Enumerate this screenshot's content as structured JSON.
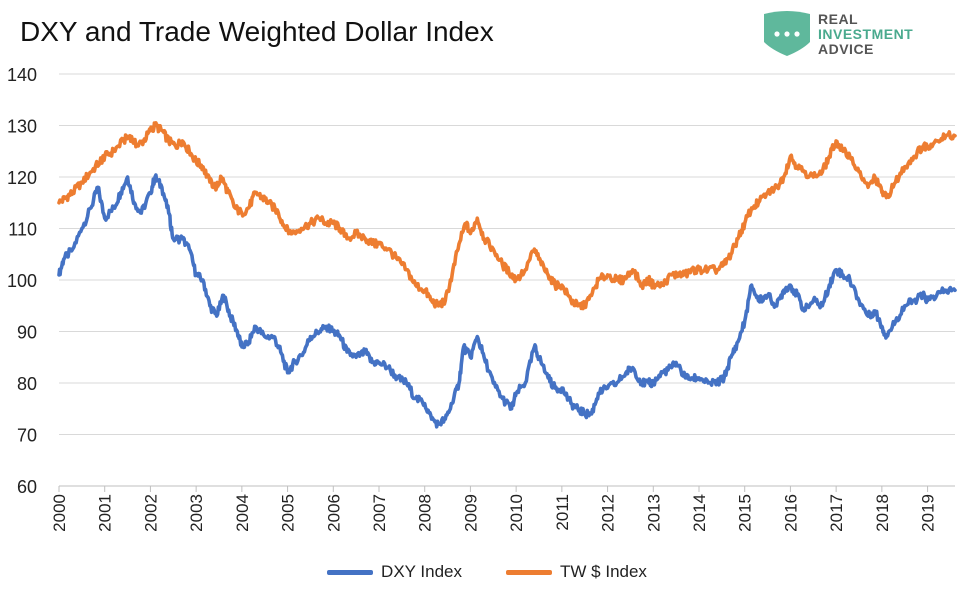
{
  "title": "DXY and Trade Weighted Dollar Index",
  "logo": {
    "lines": [
      "REAL",
      "INVESTMENT",
      "ADVICE"
    ],
    "colors": [
      "#555555",
      "#4aaa8e",
      "#555555"
    ],
    "icon": "chat-bubble-icon",
    "icon_color": "#5fb89c"
  },
  "chart_data": {
    "type": "line",
    "title": "DXY and Trade Weighted Dollar Index",
    "xlabel": "",
    "ylabel": "",
    "xlim": [
      2000,
      2019.6
    ],
    "ylim": [
      60,
      140
    ],
    "yticks": [
      60,
      70,
      80,
      90,
      100,
      110,
      120,
      130,
      140
    ],
    "xticks": [
      "2000",
      "2001",
      "2002",
      "2003",
      "2004",
      "2005",
      "2006",
      "2007",
      "2008",
      "2009",
      "2010",
      "2011",
      "2012",
      "2013",
      "2014",
      "2015",
      "2016",
      "2017",
      "2018",
      "2019"
    ],
    "grid": "horizontal",
    "legend_position": "bottom",
    "series": [
      {
        "name": "DXY Index",
        "color": "#4472c4",
        "points": [
          [
            2000.0,
            101
          ],
          [
            2000.1,
            104
          ],
          [
            2000.3,
            106
          ],
          [
            2000.5,
            110
          ],
          [
            2000.7,
            114
          ],
          [
            2000.85,
            118
          ],
          [
            2001.0,
            112
          ],
          [
            2001.2,
            114
          ],
          [
            2001.35,
            117
          ],
          [
            2001.5,
            120
          ],
          [
            2001.65,
            115
          ],
          [
            2001.8,
            113
          ],
          [
            2002.0,
            117
          ],
          [
            2002.1,
            120
          ],
          [
            2002.25,
            118
          ],
          [
            2002.4,
            113
          ],
          [
            2002.5,
            108
          ],
          [
            2002.7,
            108
          ],
          [
            2002.85,
            106
          ],
          [
            2003.0,
            101
          ],
          [
            2003.15,
            100
          ],
          [
            2003.3,
            95
          ],
          [
            2003.45,
            93
          ],
          [
            2003.6,
            97
          ],
          [
            2003.75,
            93
          ],
          [
            2003.9,
            90
          ],
          [
            2004.0,
            87
          ],
          [
            2004.15,
            88
          ],
          [
            2004.3,
            91
          ],
          [
            2004.5,
            89
          ],
          [
            2004.7,
            89
          ],
          [
            2004.85,
            86
          ],
          [
            2005.0,
            82
          ],
          [
            2005.15,
            84
          ],
          [
            2005.35,
            86
          ],
          [
            2005.5,
            89
          ],
          [
            2005.7,
            90
          ],
          [
            2005.85,
            91
          ],
          [
            2006.0,
            90
          ],
          [
            2006.15,
            89
          ],
          [
            2006.3,
            86
          ],
          [
            2006.5,
            85
          ],
          [
            2006.7,
            86
          ],
          [
            2006.85,
            84
          ],
          [
            2007.0,
            84
          ],
          [
            2007.2,
            83
          ],
          [
            2007.4,
            81
          ],
          [
            2007.6,
            80
          ],
          [
            2007.8,
            77
          ],
          [
            2008.0,
            76
          ],
          [
            2008.15,
            73
          ],
          [
            2008.3,
            72
          ],
          [
            2008.45,
            73
          ],
          [
            2008.6,
            76
          ],
          [
            2008.75,
            80
          ],
          [
            2008.85,
            87
          ],
          [
            2009.0,
            85
          ],
          [
            2009.15,
            89
          ],
          [
            2009.3,
            85
          ],
          [
            2009.5,
            80
          ],
          [
            2009.7,
            77
          ],
          [
            2009.9,
            75
          ],
          [
            2010.0,
            78
          ],
          [
            2010.2,
            80
          ],
          [
            2010.4,
            87
          ],
          [
            2010.5,
            85
          ],
          [
            2010.7,
            81
          ],
          [
            2010.85,
            79
          ],
          [
            2011.0,
            79
          ],
          [
            2011.2,
            76
          ],
          [
            2011.35,
            75
          ],
          [
            2011.5,
            74
          ],
          [
            2011.65,
            74
          ],
          [
            2011.8,
            78
          ],
          [
            2012.0,
            79
          ],
          [
            2012.2,
            80
          ],
          [
            2012.4,
            82
          ],
          [
            2012.55,
            83
          ],
          [
            2012.75,
            80
          ],
          [
            2012.9,
            80
          ],
          [
            2013.0,
            80
          ],
          [
            2013.2,
            82
          ],
          [
            2013.4,
            83
          ],
          [
            2013.5,
            84
          ],
          [
            2013.7,
            81
          ],
          [
            2013.85,
            81
          ],
          [
            2014.0,
            81
          ],
          [
            2014.2,
            80
          ],
          [
            2014.4,
            80
          ],
          [
            2014.55,
            81
          ],
          [
            2014.7,
            85
          ],
          [
            2014.85,
            88
          ],
          [
            2015.0,
            92
          ],
          [
            2015.15,
            99
          ],
          [
            2015.3,
            96
          ],
          [
            2015.5,
            97
          ],
          [
            2015.7,
            95
          ],
          [
            2015.85,
            98
          ],
          [
            2016.0,
            99
          ],
          [
            2016.15,
            97
          ],
          [
            2016.3,
            94
          ],
          [
            2016.5,
            96
          ],
          [
            2016.7,
            95
          ],
          [
            2016.85,
            99
          ],
          [
            2017.0,
            102
          ],
          [
            2017.15,
            101
          ],
          [
            2017.3,
            100
          ],
          [
            2017.5,
            96
          ],
          [
            2017.7,
            93
          ],
          [
            2017.85,
            94
          ],
          [
            2018.0,
            91
          ],
          [
            2018.1,
            89
          ],
          [
            2018.3,
            92
          ],
          [
            2018.5,
            95
          ],
          [
            2018.7,
            96
          ],
          [
            2018.9,
            97
          ],
          [
            2019.0,
            96
          ],
          [
            2019.2,
            97
          ],
          [
            2019.4,
            98
          ],
          [
            2019.6,
            98
          ]
        ]
      },
      {
        "name": "TW $ Index",
        "color": "#ed7d31",
        "points": [
          [
            2000.0,
            115
          ],
          [
            2000.15,
            116
          ],
          [
            2000.3,
            117
          ],
          [
            2000.5,
            119
          ],
          [
            2000.7,
            121
          ],
          [
            2000.9,
            123
          ],
          [
            2001.0,
            124
          ],
          [
            2001.2,
            125
          ],
          [
            2001.4,
            127
          ],
          [
            2001.55,
            128
          ],
          [
            2001.7,
            126
          ],
          [
            2001.85,
            127
          ],
          [
            2002.0,
            129
          ],
          [
            2002.1,
            130
          ],
          [
            2002.25,
            129
          ],
          [
            2002.4,
            127
          ],
          [
            2002.55,
            126
          ],
          [
            2002.7,
            127
          ],
          [
            2002.85,
            125
          ],
          [
            2003.0,
            123
          ],
          [
            2003.15,
            122
          ],
          [
            2003.3,
            119
          ],
          [
            2003.45,
            118
          ],
          [
            2003.55,
            120
          ],
          [
            2003.7,
            117
          ],
          [
            2003.85,
            114
          ],
          [
            2004.0,
            113
          ],
          [
            2004.15,
            114
          ],
          [
            2004.3,
            117
          ],
          [
            2004.45,
            116
          ],
          [
            2004.6,
            115
          ],
          [
            2004.8,
            113
          ],
          [
            2004.95,
            110
          ],
          [
            2005.1,
            109
          ],
          [
            2005.3,
            110
          ],
          [
            2005.5,
            111
          ],
          [
            2005.7,
            112
          ],
          [
            2005.85,
            111
          ],
          [
            2006.0,
            111
          ],
          [
            2006.15,
            110
          ],
          [
            2006.3,
            108
          ],
          [
            2006.5,
            109
          ],
          [
            2006.7,
            108
          ],
          [
            2006.9,
            107
          ],
          [
            2007.0,
            107
          ],
          [
            2007.2,
            106
          ],
          [
            2007.4,
            104
          ],
          [
            2007.6,
            102
          ],
          [
            2007.8,
            99
          ],
          [
            2008.0,
            98
          ],
          [
            2008.15,
            96
          ],
          [
            2008.3,
            95
          ],
          [
            2008.45,
            96
          ],
          [
            2008.6,
            101
          ],
          [
            2008.75,
            107
          ],
          [
            2008.9,
            111
          ],
          [
            2009.0,
            109
          ],
          [
            2009.15,
            112
          ],
          [
            2009.3,
            108
          ],
          [
            2009.5,
            106
          ],
          [
            2009.7,
            103
          ],
          [
            2009.9,
            101
          ],
          [
            2010.0,
            100
          ],
          [
            2010.2,
            102
          ],
          [
            2010.4,
            106
          ],
          [
            2010.55,
            103
          ],
          [
            2010.7,
            101
          ],
          [
            2010.85,
            99
          ],
          [
            2011.0,
            99
          ],
          [
            2011.2,
            96
          ],
          [
            2011.35,
            95
          ],
          [
            2011.5,
            95
          ],
          [
            2011.65,
            97
          ],
          [
            2011.8,
            100
          ],
          [
            2012.0,
            101
          ],
          [
            2012.2,
            100
          ],
          [
            2012.35,
            100
          ],
          [
            2012.55,
            102
          ],
          [
            2012.75,
            99
          ],
          [
            2012.9,
            100
          ],
          [
            2013.0,
            99
          ],
          [
            2013.2,
            99
          ],
          [
            2013.4,
            101
          ],
          [
            2013.55,
            101
          ],
          [
            2013.7,
            101
          ],
          [
            2013.85,
            102
          ],
          [
            2014.0,
            102
          ],
          [
            2014.2,
            102
          ],
          [
            2014.4,
            102
          ],
          [
            2014.55,
            103
          ],
          [
            2014.7,
            105
          ],
          [
            2014.85,
            108
          ],
          [
            2015.0,
            111
          ],
          [
            2015.15,
            114
          ],
          [
            2015.3,
            115
          ],
          [
            2015.5,
            117
          ],
          [
            2015.7,
            118
          ],
          [
            2015.85,
            120
          ],
          [
            2016.0,
            124
          ],
          [
            2016.15,
            122
          ],
          [
            2016.3,
            121
          ],
          [
            2016.5,
            120
          ],
          [
            2016.7,
            121
          ],
          [
            2016.85,
            124
          ],
          [
            2017.0,
            127
          ],
          [
            2017.15,
            125
          ],
          [
            2017.3,
            124
          ],
          [
            2017.5,
            121
          ],
          [
            2017.7,
            118
          ],
          [
            2017.85,
            120
          ],
          [
            2018.0,
            117
          ],
          [
            2018.1,
            116
          ],
          [
            2018.3,
            119
          ],
          [
            2018.5,
            122
          ],
          [
            2018.7,
            124
          ],
          [
            2018.9,
            126
          ],
          [
            2019.0,
            126
          ],
          [
            2019.2,
            127
          ],
          [
            2019.4,
            128
          ],
          [
            2019.6,
            128
          ]
        ]
      }
    ]
  }
}
